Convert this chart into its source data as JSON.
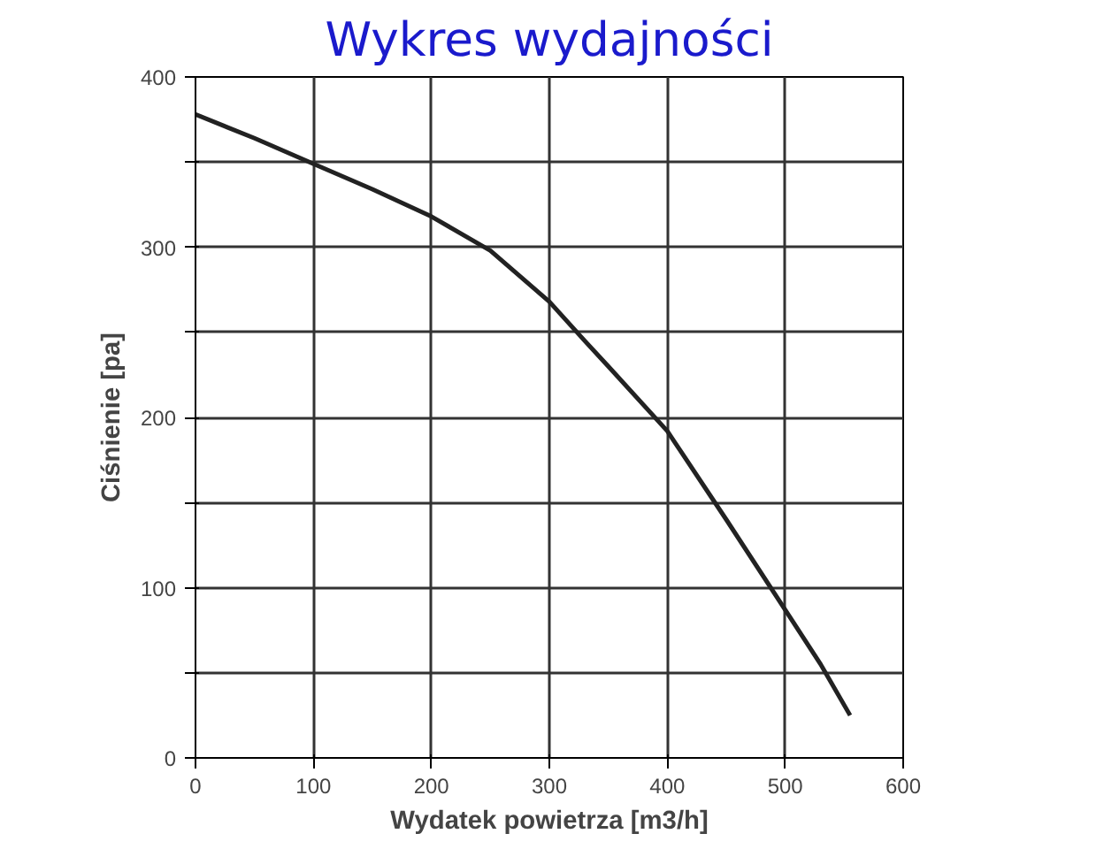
{
  "chart_data": {
    "type": "line",
    "title": "Wykres wydajności",
    "xlabel": "Wydatek powietrza [m3/h]",
    "ylabel": "Ciśnienie [pa]",
    "x": [
      0,
      50,
      100,
      150,
      200,
      250,
      300,
      330,
      350,
      400,
      450,
      500,
      530,
      555
    ],
    "series": [
      {
        "color": "#222222",
        "values": [
          378,
          364,
          349,
          334,
          318,
          298,
          268,
          245,
          230,
          192,
          140,
          87,
          55,
          25
        ]
      }
    ],
    "xlim": [
      0,
      600
    ],
    "ylim": [
      0,
      400
    ],
    "xticks": [
      0,
      100,
      200,
      300,
      400,
      500,
      600
    ],
    "yticks": [
      0,
      {
        "value": 50,
        "label": null
      },
      100,
      {
        "value": 150,
        "label": null
      },
      200,
      {
        "value": 250,
        "label": null
      },
      300,
      {
        "value": 350,
        "label": null
      },
      400
    ],
    "grid": true,
    "marker": "none",
    "line_style": "solid"
  }
}
